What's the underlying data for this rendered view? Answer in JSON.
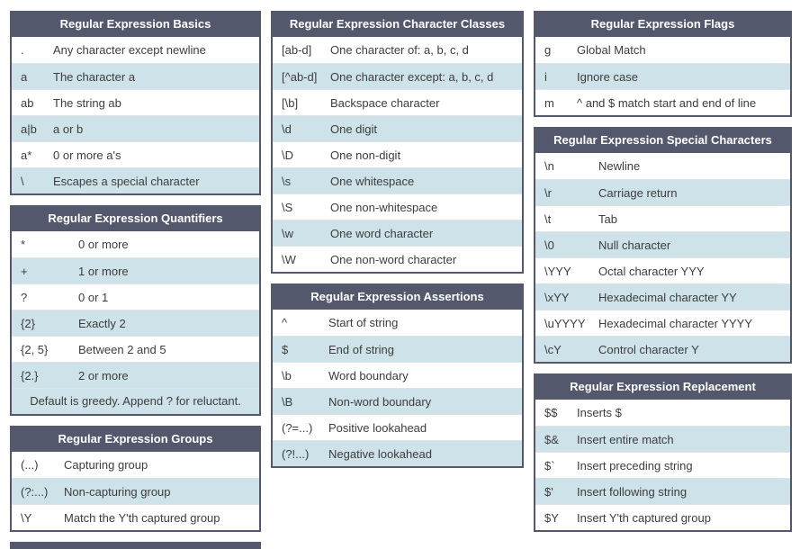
{
  "theme": {
    "header_bg": "#54586c",
    "header_text": "#ffffff",
    "row_alt_bg": "#cde2e9",
    "border_color": "#54586c",
    "text_color": "#3d3d3d"
  },
  "tables": {
    "basics": {
      "title": "Regular Expression Basics",
      "rows": [
        {
          "code": ".",
          "desc": "Any character except newline"
        },
        {
          "code": "a",
          "desc": "The character a"
        },
        {
          "code": "ab",
          "desc": "The string ab"
        },
        {
          "code": "a|b",
          "desc": "a or b"
        },
        {
          "code": "a*",
          "desc": "0 or more a's"
        },
        {
          "code": "\\",
          "desc": "Escapes a special character"
        }
      ]
    },
    "quantifiers": {
      "title": "Regular Expression Quantifiers",
      "rows": [
        {
          "code": "*",
          "desc": "0 or more"
        },
        {
          "code": "+",
          "desc": "1 or more"
        },
        {
          "code": "?",
          "desc": "0 or 1"
        },
        {
          "code": "{2}",
          "desc": "Exactly 2"
        },
        {
          "code": "{2, 5}",
          "desc": "Between 2 and 5"
        },
        {
          "code": "{2.}",
          "desc": "2 or more"
        }
      ],
      "footer": "Default is greedy. Append ? for reluctant."
    },
    "groups": {
      "title": "Regular Expression Groups",
      "rows": [
        {
          "code": "(...)",
          "desc": "Capturing group"
        },
        {
          "code": "(?:...)",
          "desc": "Non-capturing group"
        },
        {
          "code": "\\Y",
          "desc": "Match the Y'th captured group"
        }
      ]
    },
    "character_classes": {
      "title": "Regular Expression Character Classes",
      "rows": [
        {
          "code": "[ab-d]",
          "desc": "One character of: a, b, c, d"
        },
        {
          "code": "[^ab-d]",
          "desc": "One character except: a, b, c, d"
        },
        {
          "code": "[\\b]",
          "desc": "Backspace character"
        },
        {
          "code": "\\d",
          "desc": "One digit"
        },
        {
          "code": "\\D",
          "desc": "One non-digit"
        },
        {
          "code": "\\s",
          "desc": "One whitespace"
        },
        {
          "code": "\\S",
          "desc": "One non-whitespace"
        },
        {
          "code": "\\w",
          "desc": "One word character"
        },
        {
          "code": "\\W",
          "desc": "One non-word character"
        }
      ]
    },
    "assertions": {
      "title": "Regular Expression Assertions",
      "rows": [
        {
          "code": "^",
          "desc": "Start of string"
        },
        {
          "code": "$",
          "desc": "End of string"
        },
        {
          "code": "\\b",
          "desc": "Word boundary"
        },
        {
          "code": "\\B",
          "desc": "Non-word boundary"
        },
        {
          "code": "(?=...)",
          "desc": "Positive lookahead"
        },
        {
          "code": "(?!...)",
          "desc": "Negative lookahead"
        }
      ]
    },
    "flags": {
      "title": "Regular Expression Flags",
      "rows": [
        {
          "code": "g",
          "desc": "Global Match"
        },
        {
          "code": "i",
          "desc": "Ignore case"
        },
        {
          "code": "m",
          "desc": "^ and $ match start and end of line"
        }
      ]
    },
    "special_characters": {
      "title": "Regular Expression Special Characters",
      "rows": [
        {
          "code": "\\n",
          "desc": "Newline"
        },
        {
          "code": "\\r",
          "desc": "Carriage return"
        },
        {
          "code": "\\t",
          "desc": "Tab"
        },
        {
          "code": "\\0",
          "desc": "Null character"
        },
        {
          "code": "\\YYY",
          "desc": "Octal character YYY"
        },
        {
          "code": "\\xYY",
          "desc": "Hexadecimal character YY"
        },
        {
          "code": "\\uYYYY",
          "desc": "Hexadecimal character YYYY"
        },
        {
          "code": "\\cY",
          "desc": "Control character Y"
        }
      ]
    },
    "replacement": {
      "title": "Regular Expression Replacement",
      "rows": [
        {
          "code": "$$",
          "desc": "Inserts $"
        },
        {
          "code": "$&",
          "desc": "Insert entire match"
        },
        {
          "code": "$`",
          "desc": "Insert preceding string"
        },
        {
          "code": "$'",
          "desc": "Insert following string"
        },
        {
          "code": "$Y",
          "desc": "Insert Y'th captured group"
        }
      ]
    }
  }
}
